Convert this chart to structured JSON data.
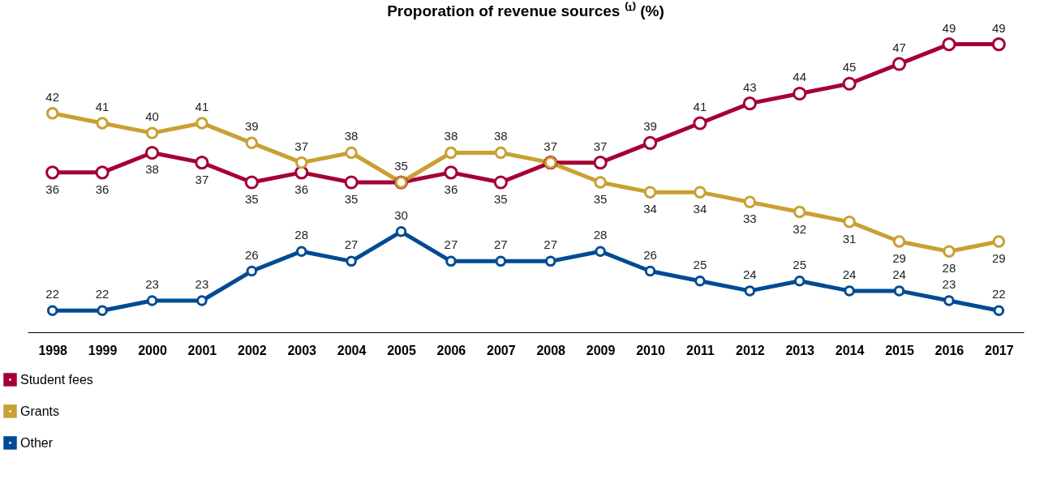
{
  "chart_data": {
    "type": "line",
    "title": "Proporation of revenue sources ⁽¹⁾ (%)",
    "categories": [
      "1998",
      "1999",
      "2000",
      "2001",
      "2002",
      "2003",
      "2004",
      "2005",
      "2006",
      "2007",
      "2008",
      "2009",
      "2010",
      "2011",
      "2012",
      "2013",
      "2014",
      "2015",
      "2016",
      "2017"
    ],
    "series": [
      {
        "name": "Student fees",
        "color": "#a50034",
        "values": [
          36,
          36,
          38,
          37,
          35,
          36,
          35,
          35,
          36,
          35,
          37,
          37,
          39,
          41,
          43,
          44,
          45,
          47,
          49,
          49
        ],
        "value_labels": [
          "36",
          "36",
          "38",
          "37",
          "35",
          "36",
          "35",
          null,
          "36",
          "35",
          null,
          "37",
          "39",
          "41",
          "43",
          "44",
          "45",
          "47",
          "49",
          "49"
        ]
      },
      {
        "name": "Grants",
        "color": "#c9a032",
        "values": [
          42,
          41,
          40,
          41,
          39,
          37,
          38,
          35,
          38,
          38,
          37,
          35,
          34,
          34,
          33,
          32,
          31,
          29,
          28,
          29
        ],
        "value_labels": [
          "42",
          "41",
          "40",
          "41",
          "39",
          "37",
          "38",
          "35",
          "38",
          "38",
          "37",
          "35",
          "34",
          "34",
          "33",
          "32",
          "31",
          "29",
          "28",
          "29"
        ]
      },
      {
        "name": "Other",
        "color": "#004b93",
        "values": [
          22,
          22,
          23,
          23,
          26,
          28,
          27,
          30,
          27,
          27,
          27,
          28,
          26,
          25,
          24,
          25,
          24,
          24,
          23,
          22
        ],
        "value_labels": [
          "22",
          "22",
          "23",
          "23",
          "26",
          "28",
          "27",
          "30",
          "27",
          "27",
          "27",
          "28",
          "26",
          "25",
          "24",
          "25",
          "24",
          "24",
          "23",
          "22"
        ]
      }
    ],
    "marker": "circle",
    "legend": "bottom left"
  }
}
